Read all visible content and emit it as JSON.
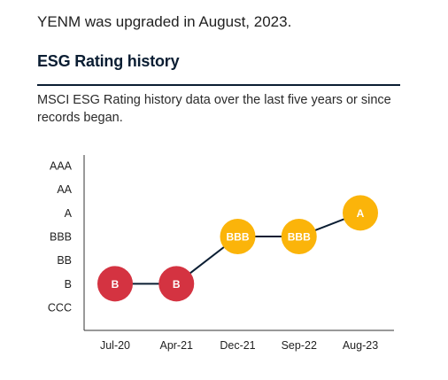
{
  "header": {
    "upgrade_text": "YENM was upgraded in August, 2023.",
    "title": "ESG Rating history",
    "description": "MSCI ESG Rating history data over the last five years or since records began."
  },
  "colors": {
    "heading": "#0b1e33",
    "line": "#0b1e33",
    "axis": "#333333",
    "rating_low": "#d43341",
    "rating_mid": "#fbb40a"
  },
  "chart_data": {
    "type": "line",
    "title": "",
    "xlabel": "",
    "ylabel": "",
    "y_categories": [
      "CCC",
      "B",
      "BB",
      "BBB",
      "A",
      "AA",
      "AAA"
    ],
    "categories": [
      "Jul-20",
      "Apr-21",
      "Dec-21",
      "Sep-22",
      "Aug-23"
    ],
    "values": [
      "B",
      "B",
      "BBB",
      "BBB",
      "A"
    ],
    "point_colors": [
      "#d43341",
      "#d43341",
      "#fbb40a",
      "#fbb40a",
      "#fbb40a"
    ],
    "grid": false,
    "legend": "none"
  }
}
